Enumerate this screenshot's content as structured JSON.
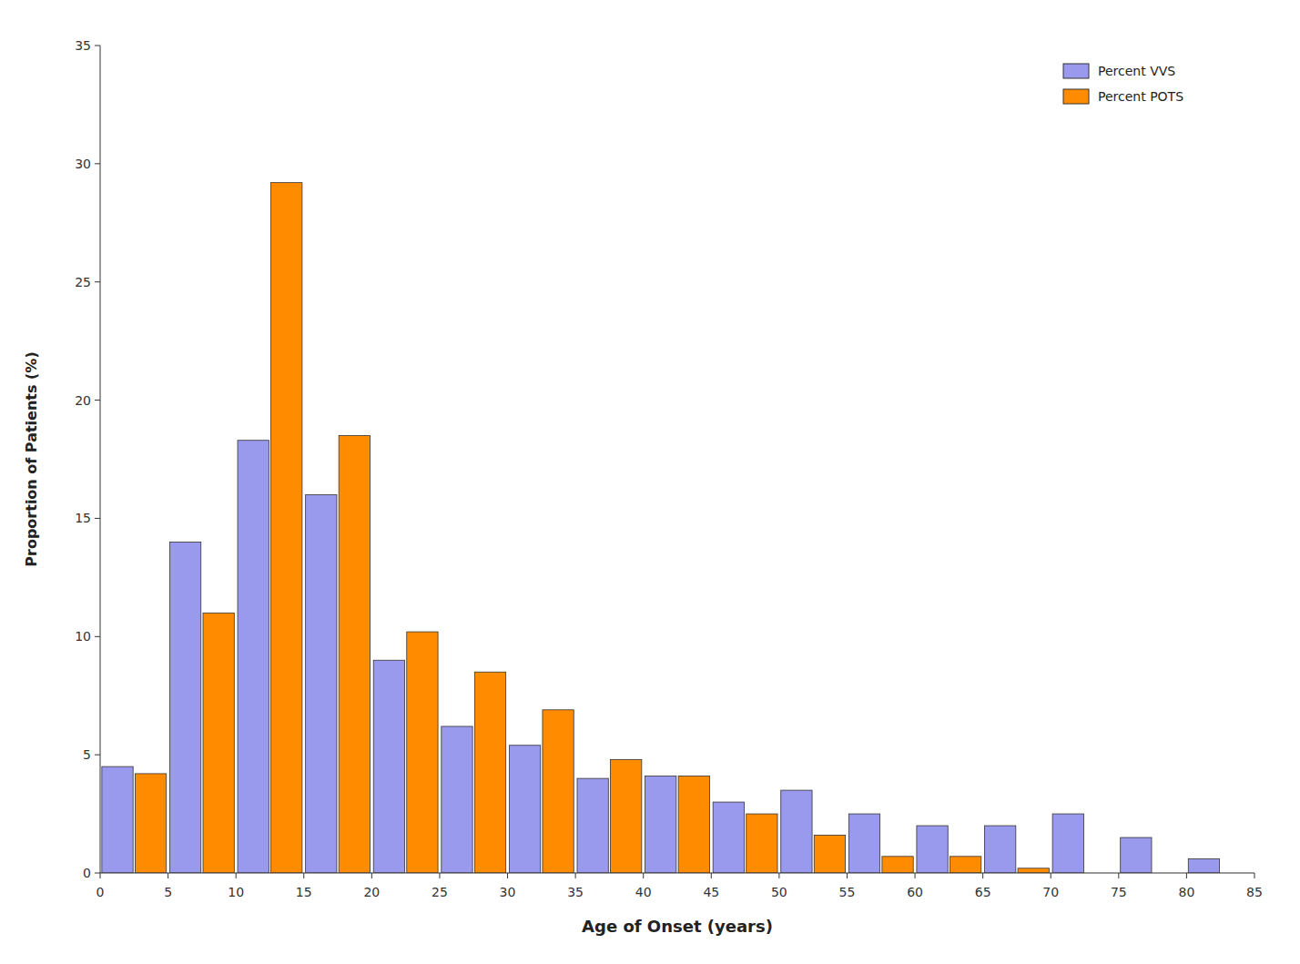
{
  "chart_data": {
    "type": "bar",
    "xlabel": "Age of Onset (years)",
    "ylabel": "Proportion of Patients (%)",
    "bins": [
      0,
      5,
      10,
      15,
      20,
      25,
      30,
      35,
      40,
      45,
      50,
      55,
      60,
      65,
      70,
      75,
      80,
      85
    ],
    "series": [
      {
        "name": "Percent VVS",
        "color": "#9999EE",
        "values": [
          4.5,
          14.0,
          18.3,
          16.0,
          9.0,
          6.2,
          5.4,
          4.0,
          4.1,
          3.0,
          3.5,
          2.5,
          2.0,
          2.0,
          2.5,
          1.5,
          0.6
        ]
      },
      {
        "name": "Percent POTS",
        "color": "#FF8C00",
        "values": [
          4.2,
          11.0,
          29.2,
          18.5,
          10.2,
          8.5,
          6.9,
          4.8,
          4.1,
          2.5,
          1.6,
          0.7,
          0.7,
          0.2,
          0.0,
          0.0,
          0.0
        ]
      }
    ],
    "xlim": [
      0,
      85
    ],
    "xticks": [
      0,
      5,
      10,
      15,
      20,
      25,
      30,
      35,
      40,
      45,
      50,
      55,
      60,
      65,
      70,
      75,
      80,
      85
    ],
    "ylim": [
      0,
      35
    ],
    "yticks": [
      0,
      5,
      10,
      15,
      20,
      25,
      30,
      35
    ],
    "grid": false,
    "legend": "upper right"
  }
}
